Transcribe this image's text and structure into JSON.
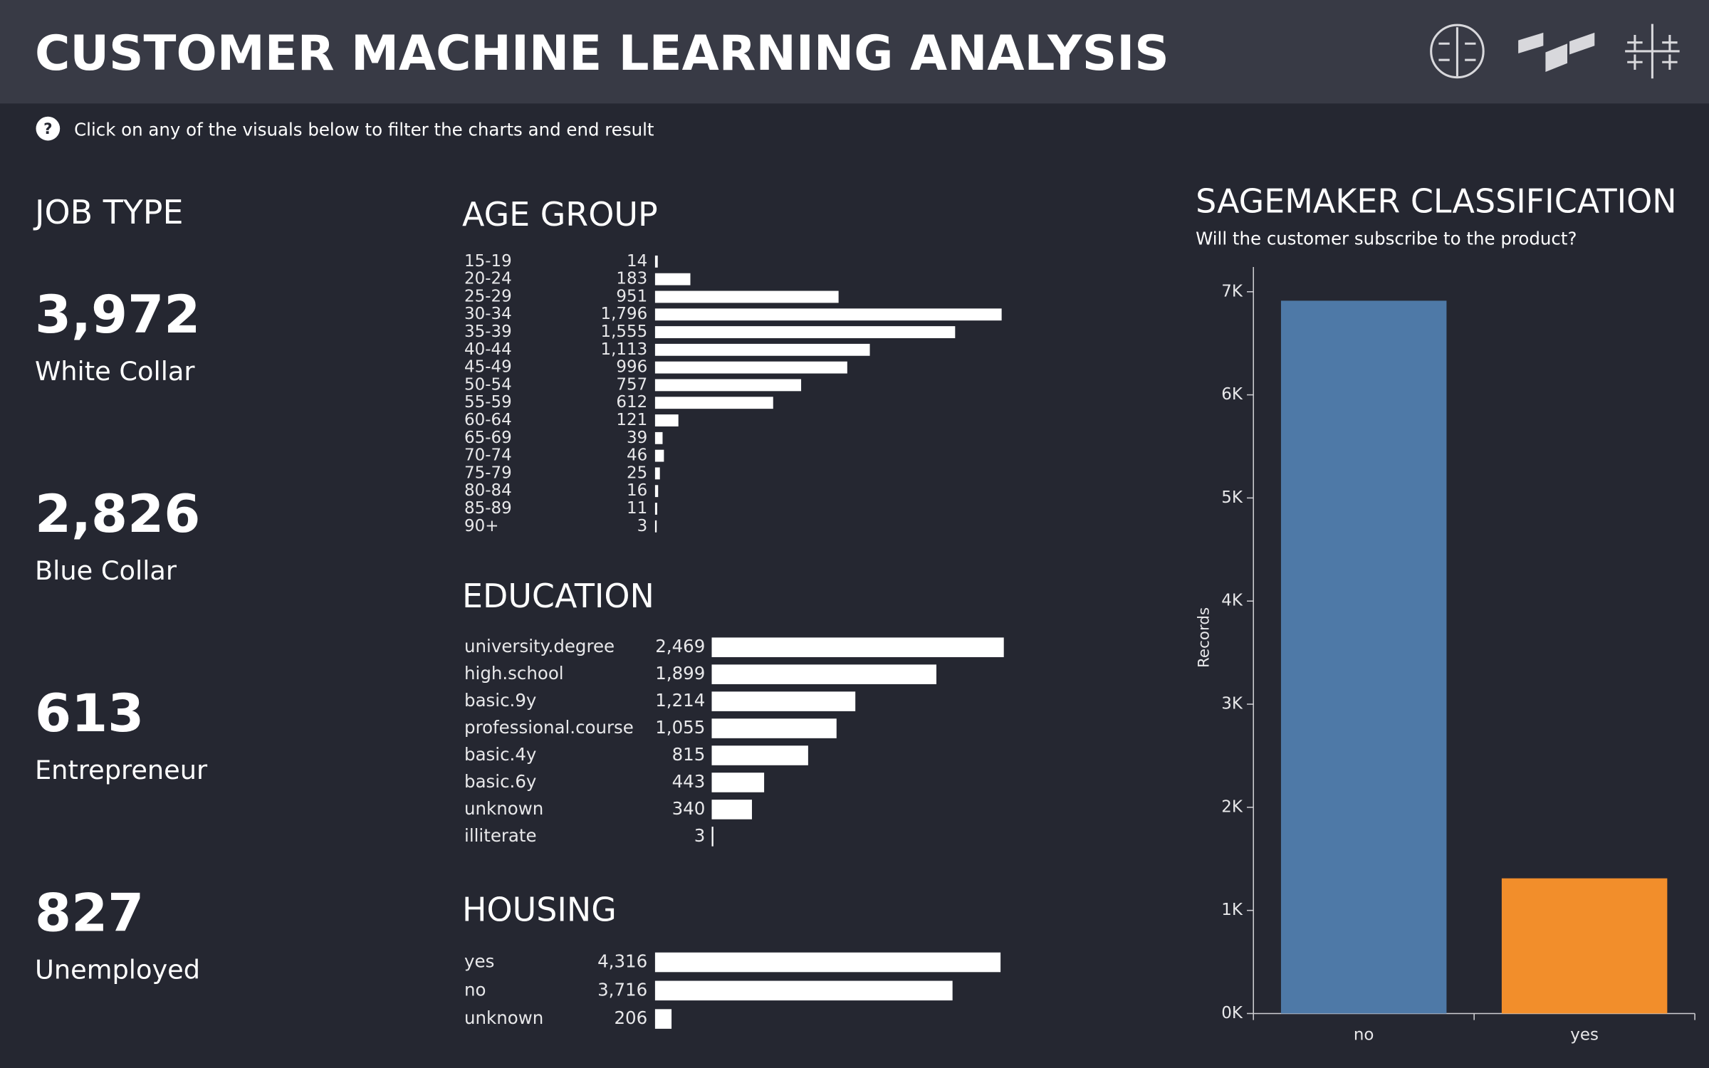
{
  "header": {
    "title": "CUSTOMER MACHINE LEARNING ANALYSIS",
    "instruction": "Click on any of the visuals below to filter the charts and end result"
  },
  "job_type": {
    "title": "JOB TYPE",
    "items": [
      {
        "count": "3,972",
        "name": "White Collar"
      },
      {
        "count": "2,826",
        "name": "Blue Collar"
      },
      {
        "count": "613",
        "name": "Entrepreneur"
      },
      {
        "count": "827",
        "name": "Unemployed"
      }
    ]
  },
  "chart_data": [
    {
      "type": "bar",
      "orientation": "horizontal",
      "title": "AGE GROUP",
      "color": "#ffffff",
      "categories": [
        "15-19",
        "20-24",
        "25-29",
        "30-34",
        "35-39",
        "40-44",
        "45-49",
        "50-54",
        "55-59",
        "60-64",
        "65-69",
        "70-74",
        "75-79",
        "80-84",
        "85-89",
        "90+"
      ],
      "values": [
        14,
        183,
        951,
        1796,
        1555,
        1113,
        996,
        757,
        612,
        121,
        39,
        46,
        25,
        16,
        11,
        3
      ],
      "value_labels": [
        "14",
        "183",
        "951",
        "1,796",
        "1,555",
        "1,113",
        "996",
        "757",
        "612",
        "121",
        "39",
        "46",
        "25",
        "16",
        "11",
        "3"
      ]
    },
    {
      "type": "bar",
      "orientation": "horizontal",
      "title": "EDUCATION",
      "color": "#ffffff",
      "categories": [
        "university.degree",
        "high.school",
        "basic.9y",
        "professional.course",
        "basic.4y",
        "basic.6y",
        "unknown",
        "illiterate"
      ],
      "values": [
        2469,
        1899,
        1214,
        1055,
        815,
        443,
        340,
        3
      ],
      "value_labels": [
        "2,469",
        "1,899",
        "1,214",
        "1,055",
        "815",
        "443",
        "340",
        "3"
      ]
    },
    {
      "type": "bar",
      "orientation": "horizontal",
      "title": "HOUSING",
      "color": "#ffffff",
      "categories": [
        "yes",
        "no",
        "unknown"
      ],
      "values": [
        4316,
        3716,
        206
      ],
      "value_labels": [
        "4,316",
        "3,716",
        "206"
      ]
    },
    {
      "type": "bar",
      "orientation": "vertical",
      "title": "SAGEMAKER CLASSIFICATION",
      "subtitle": "Will the customer subscribe to the product?",
      "ylabel": "Records",
      "categories": [
        "no",
        "yes"
      ],
      "values": [
        6913,
        1311
      ],
      "colors": [
        "#4e79a7",
        "#f28e2b"
      ],
      "ylim": [
        0,
        7240
      ],
      "yticks": [
        {
          "value": 0,
          "label": "0K"
        },
        {
          "value": 1000,
          "label": "1K"
        },
        {
          "value": 2000,
          "label": "2K"
        },
        {
          "value": 3000,
          "label": "3K"
        },
        {
          "value": 4000,
          "label": "4K"
        },
        {
          "value": 5000,
          "label": "5K"
        },
        {
          "value": 6000,
          "label": "6K"
        },
        {
          "value": 7000,
          "label": "7K"
        }
      ]
    }
  ]
}
